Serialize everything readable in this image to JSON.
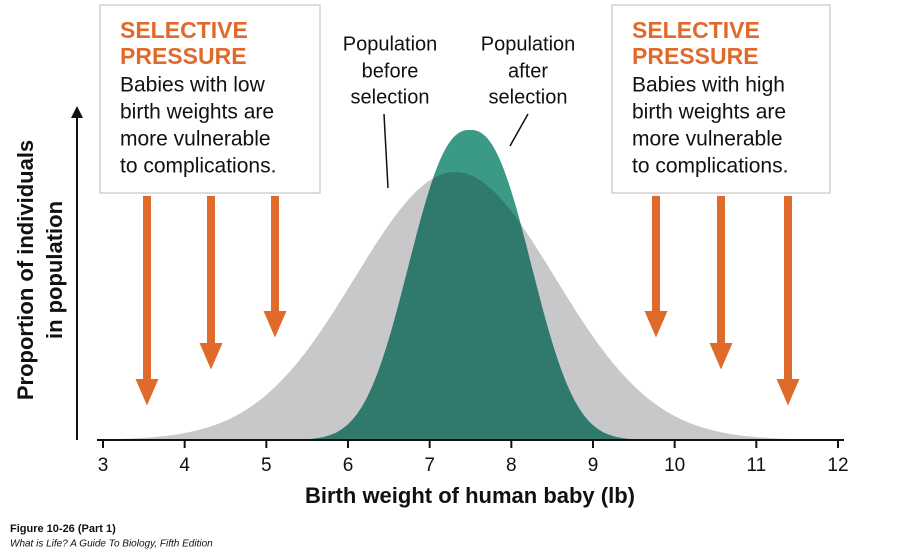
{
  "left_box": {
    "heading": [
      "SELECTIVE",
      "PRESSURE"
    ],
    "body": [
      "Babies with low",
      "birth weights are",
      "more vulnerable",
      "to complications."
    ]
  },
  "right_box": {
    "heading": [
      "SELECTIVE",
      "PRESSURE"
    ],
    "body": [
      "Babies with high",
      "birth weights are",
      "more vulnerable",
      "to complications."
    ]
  },
  "labels": {
    "before": [
      "Population",
      "before",
      "selection"
    ],
    "after": [
      "Population",
      "after",
      "selection"
    ]
  },
  "y_axis": {
    "title": [
      "Proportion of individuals",
      "in population"
    ]
  },
  "x_axis": {
    "title": "Birth weight of human baby (lb)",
    "range": [
      3,
      12
    ],
    "ticks": [
      3,
      4,
      5,
      6,
      7,
      8,
      9,
      10,
      11,
      12
    ]
  },
  "footer": {
    "figure": "Figure 10-26 (Part 1)",
    "source": "What is Life? A Guide To Biology, Fifth Edition"
  }
}
